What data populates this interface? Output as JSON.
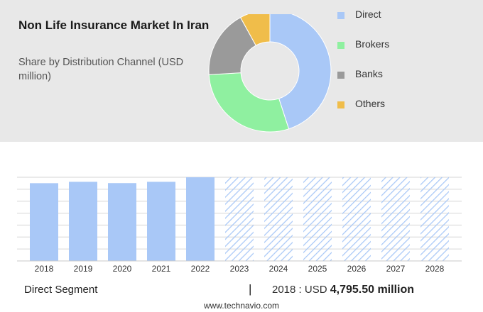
{
  "header": {
    "title": "Non Life Insurance Market In Iran",
    "subtitle": "Share by Distribution Channel (USD million)"
  },
  "colors": {
    "direct": "#a9c8f7",
    "brokers": "#8ff0a0",
    "banks": "#9a9a9a",
    "others": "#f0bd4a",
    "bar": "#a9c8f7",
    "forecast_hatch": "#a9c8f7"
  },
  "chart_data": [
    {
      "type": "pie",
      "variant": "donut",
      "categories": [
        "Direct",
        "Brokers",
        "Banks",
        "Others"
      ],
      "values": [
        45,
        29,
        18,
        8
      ],
      "legend_position": "right"
    },
    {
      "type": "bar",
      "categories": [
        "2018",
        "2019",
        "2020",
        "2021",
        "2022",
        "2023",
        "2024",
        "2025",
        "2026",
        "2027",
        "2028"
      ],
      "values": [
        4795.5,
        4880,
        4800,
        4880,
        5160,
        5160,
        5160,
        5160,
        5160,
        5160,
        5160
      ],
      "forecast_from": "2023",
      "grid": true
    }
  ],
  "footer": {
    "segment_label": "Direct Segment",
    "separator": "|",
    "year_prefix": "2018 : USD",
    "value": "4,795.50 million",
    "source": "www.technavio.com"
  }
}
